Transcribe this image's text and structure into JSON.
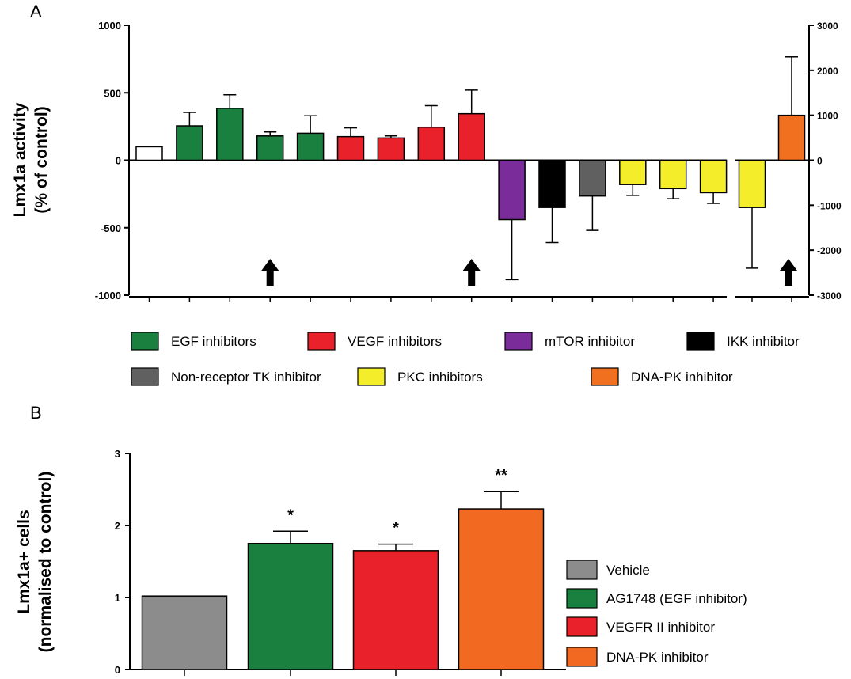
{
  "panel_a": {
    "letter": "A",
    "ylabel_line1": "Lmx1a activity",
    "ylabel_line2": "(% of control)"
  },
  "panel_b": {
    "letter": "B",
    "ylabel_line1": "Lmx1a+ cells",
    "ylabel_line2": "(normalised to control)"
  },
  "chart_data": [
    {
      "type": "bar",
      "panel": "A",
      "left_axis": {
        "ylim": [
          -1000,
          1000
        ],
        "ticks": [
          1000,
          500,
          0,
          -500,
          -1000
        ],
        "tick_labels": [
          "1000",
          "500",
          "0",
          "-500",
          "-1000"
        ]
      },
      "right_axis": {
        "ylim": [
          -3000,
          3000
        ],
        "ticks": [
          3000,
          2000,
          1000,
          0,
          -1000,
          -2000,
          -3000
        ],
        "tick_labels": [
          "3000",
          "2000",
          "1000",
          "0",
          "-1000",
          "-2000",
          "-3000"
        ]
      },
      "bars": [
        {
          "group": "control",
          "value": 100,
          "error": 0,
          "color": "#ffffff",
          "axis": "left"
        },
        {
          "group": "EGF",
          "value": 255,
          "error": 100,
          "color": "#1a8040",
          "axis": "left"
        },
        {
          "group": "EGF",
          "value": 385,
          "error": 100,
          "color": "#1a8040",
          "axis": "left",
          "arrow": false
        },
        {
          "group": "EGF",
          "value": 180,
          "error": 30,
          "color": "#1a8040",
          "axis": "left",
          "arrow": true
        },
        {
          "group": "EGF",
          "value": 200,
          "error": 130,
          "color": "#1a8040",
          "axis": "left"
        },
        {
          "group": "VEGF",
          "value": 175,
          "error": 65,
          "color": "#e8212a",
          "axis": "left"
        },
        {
          "group": "VEGF",
          "value": 165,
          "error": 15,
          "color": "#e8212a",
          "axis": "left"
        },
        {
          "group": "VEGF",
          "value": 245,
          "error": 160,
          "color": "#e8212a",
          "axis": "left"
        },
        {
          "group": "VEGF",
          "value": 345,
          "error": 175,
          "color": "#e8212a",
          "axis": "left",
          "arrow": true
        },
        {
          "group": "mTOR",
          "value": -440,
          "error": 445,
          "color": "#7a2d9a",
          "axis": "left"
        },
        {
          "group": "IKK",
          "value": -350,
          "error": 260,
          "color": "#000000",
          "axis": "left"
        },
        {
          "group": "Non-receptor TK",
          "value": -265,
          "error": 255,
          "color": "#606060",
          "axis": "left"
        },
        {
          "group": "PKC",
          "value": -180,
          "error": 80,
          "color": "#f4ee2a",
          "axis": "left"
        },
        {
          "group": "PKC",
          "value": -210,
          "error": 75,
          "color": "#f4ee2a",
          "axis": "left"
        },
        {
          "group": "PKC",
          "value": -240,
          "error": 80,
          "color": "#f4ee2a",
          "axis": "left"
        },
        {
          "group": "PKC",
          "value": -1050,
          "error": 1350,
          "color": "#f4ee2a",
          "axis": "right"
        },
        {
          "group": "DNA-PK",
          "value": 1000,
          "error": 1300,
          "color": "#f07020",
          "axis": "right",
          "arrow": true
        }
      ],
      "legend": [
        {
          "label": "EGF inhibitors",
          "color": "#1a8040"
        },
        {
          "label": "VEGF inhibitors",
          "color": "#e8212a"
        },
        {
          "label": "mTOR inhibitor",
          "color": "#7a2d9a"
        },
        {
          "label": "IKK inhibitor",
          "color": "#000000"
        },
        {
          "label": "Non-receptor TK inhibitor",
          "color": "#606060"
        },
        {
          "label": "PKC inhibitors",
          "color": "#f4ee2a"
        },
        {
          "label": "DNA-PK inhibitor",
          "color": "#f07020"
        }
      ]
    },
    {
      "type": "bar",
      "panel": "B",
      "ylim": [
        0,
        3
      ],
      "ticks": [
        0,
        1,
        2,
        3
      ],
      "tick_labels": [
        "0",
        "1",
        "2",
        "3"
      ],
      "categories": [
        "Vehicle",
        "AG1748 (EGF inhibitor)",
        "VEGFR II inhibitor",
        "DNA-PK inhibitor"
      ],
      "values": [
        1.02,
        1.75,
        1.65,
        2.23
      ],
      "errors": [
        0,
        0.17,
        0.09,
        0.24
      ],
      "significance": [
        "",
        "*",
        "*",
        "**"
      ],
      "colors": [
        "#8c8c8c",
        "#1a8040",
        "#e8212a",
        "#f26a22"
      ],
      "legend_placement": "bottom-right"
    }
  ]
}
